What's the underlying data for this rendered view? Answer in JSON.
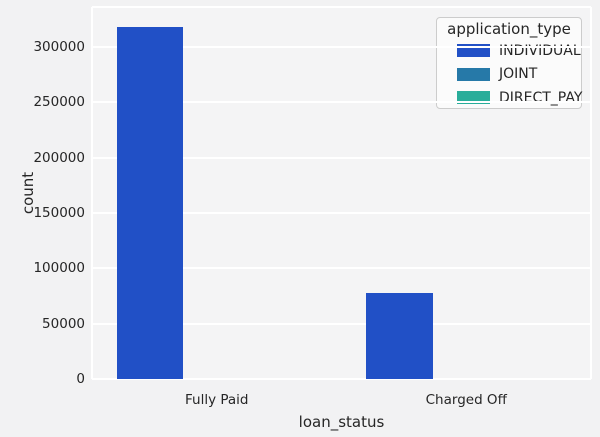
{
  "figure": {
    "background": "#f2f2f3",
    "axes_background": "#f4f4f5",
    "grid_color": "#ffffff",
    "text_color": "#262626"
  },
  "chart_data": {
    "type": "bar",
    "title": "",
    "xlabel": "loan_status",
    "ylabel": "count",
    "categories": [
      "Fully Paid",
      "Charged Off"
    ],
    "series": [
      {
        "name": "INDIVIDUAL",
        "color": "#2150c6",
        "values": [
          318000,
          77700
        ]
      },
      {
        "name": "JOINT",
        "color": "#2679a8",
        "values": [
          0,
          0
        ]
      },
      {
        "name": "DIRECT_PAY",
        "color": "#29ad9a",
        "values": [
          0,
          0
        ]
      }
    ],
    "ylim": [
      0,
      336000
    ],
    "yticks": [
      0,
      50000,
      100000,
      150000,
      200000,
      250000,
      300000
    ],
    "yticklabels": [
      "0",
      "50000",
      "100000",
      "150000",
      "200000",
      "250000",
      "300000"
    ],
    "grid": "horizontal",
    "bar_group_fraction": 0.8,
    "legend": {
      "title": "application_type",
      "position": "upper right"
    }
  }
}
